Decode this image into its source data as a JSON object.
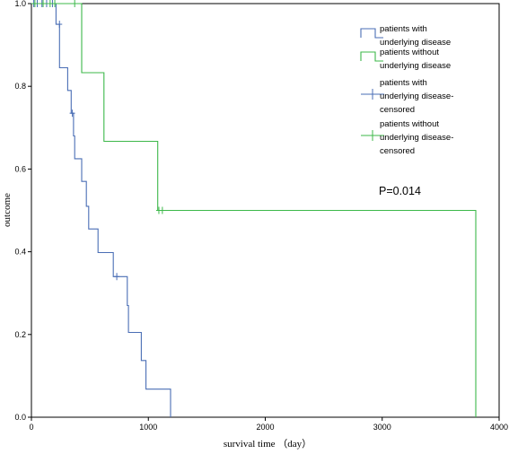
{
  "chart_data": {
    "type": "line",
    "subtype": "kaplan-meier step",
    "xlabel": "survival time （day）",
    "ylabel": "outcome",
    "xlim": [
      0,
      4000
    ],
    "ylim": [
      0,
      1.0
    ],
    "x_ticks": [
      0,
      1000,
      2000,
      3000,
      4000
    ],
    "y_ticks": [
      0.0,
      0.2,
      0.4,
      0.6,
      0.8,
      1.0
    ],
    "grid": false,
    "legend_position": "top-right",
    "annotation": "P=0.014",
    "series": [
      {
        "name": "patients with underlying disease",
        "color": "#4a6eb5",
        "steps": [
          [
            0,
            1.0
          ],
          [
            210,
            1.0
          ],
          [
            210,
            0.95
          ],
          [
            240,
            0.95
          ],
          [
            240,
            0.845
          ],
          [
            310,
            0.845
          ],
          [
            310,
            0.79
          ],
          [
            340,
            0.79
          ],
          [
            340,
            0.735
          ],
          [
            360,
            0.735
          ],
          [
            360,
            0.68
          ],
          [
            370,
            0.68
          ],
          [
            370,
            0.625
          ],
          [
            430,
            0.625
          ],
          [
            430,
            0.57
          ],
          [
            470,
            0.57
          ],
          [
            470,
            0.51
          ],
          [
            490,
            0.51
          ],
          [
            490,
            0.455
          ],
          [
            570,
            0.455
          ],
          [
            570,
            0.398
          ],
          [
            700,
            0.398
          ],
          [
            700,
            0.34
          ],
          [
            820,
            0.34
          ],
          [
            820,
            0.27
          ],
          [
            830,
            0.27
          ],
          [
            830,
            0.205
          ],
          [
            940,
            0.205
          ],
          [
            940,
            0.137
          ],
          [
            980,
            0.137
          ],
          [
            980,
            0.068
          ],
          [
            1190,
            0.068
          ],
          [
            1190,
            0.0
          ]
        ],
        "censored": [
          [
            20,
            1.0
          ],
          [
            50,
            1.0
          ],
          [
            90,
            1.0
          ],
          [
            130,
            1.0
          ],
          [
            180,
            1.0
          ],
          [
            240,
            0.95
          ],
          [
            350,
            0.735
          ],
          [
            730,
            0.34
          ]
        ]
      },
      {
        "name": "patients without underlying disease",
        "color": "#3db84a",
        "steps": [
          [
            0,
            1.0
          ],
          [
            430,
            1.0
          ],
          [
            430,
            0.833
          ],
          [
            620,
            0.833
          ],
          [
            620,
            0.667
          ],
          [
            1080,
            0.667
          ],
          [
            1080,
            0.5
          ],
          [
            3800,
            0.5
          ],
          [
            3800,
            0.0
          ]
        ],
        "censored": [
          [
            30,
            1.0
          ],
          [
            100,
            1.0
          ],
          [
            160,
            1.0
          ],
          [
            200,
            1.0
          ],
          [
            370,
            1.0
          ],
          [
            1090,
            0.5
          ],
          [
            1120,
            0.5
          ]
        ]
      }
    ],
    "legend": [
      {
        "lines": [
          "patients with",
          "underlying disease"
        ],
        "marker": "step",
        "color": "#4a6eb5"
      },
      {
        "lines": [
          "patients without",
          "underlying disease"
        ],
        "marker": "step",
        "color": "#3db84a"
      },
      {
        "lines": [
          "patients with",
          "underlying disease-",
          "censored"
        ],
        "marker": "plus",
        "color": "#4a6eb5"
      },
      {
        "lines": [
          "patients without",
          "underlying disease-",
          "censored"
        ],
        "marker": "plus",
        "color": "#3db84a"
      }
    ]
  }
}
